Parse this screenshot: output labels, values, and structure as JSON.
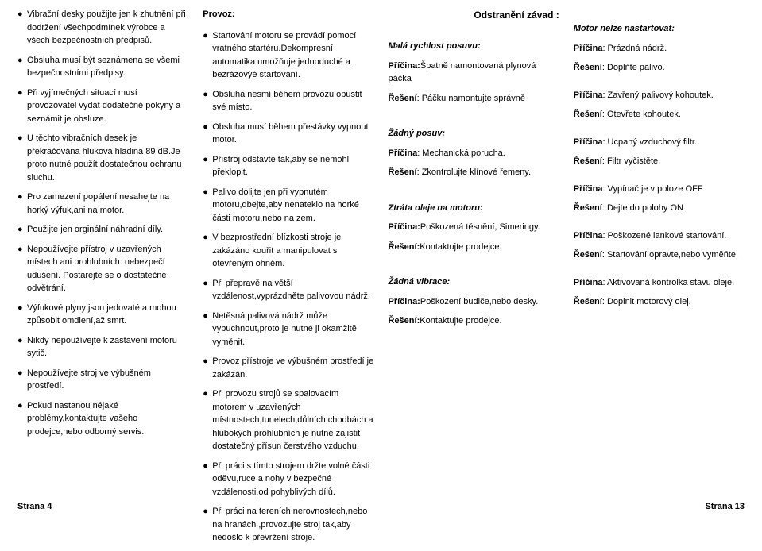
{
  "col1": {
    "items": [
      "Vibrační desky použijte jen k zhutnění při dodržení všechpodmínek výrobce a všech bezpečnostních předpisů.",
      "Obsluha musí být seznámena se všemi bezpečnostními předpisy.",
      "Při vyjímečných situací musí provozovatel vydat dodatečné pokyny a seznámit je obsluze.",
      "U těchto vibračních desek je překračována hluková hladina 89 dB.Je proto nutné použít dostatečnou ochranu sluchu.",
      "Pro zamezení popálení nesahejte na horký výfuk,ani na motor.",
      "Použijte jen orginální náhradní díly.",
      "Nepoužívejte přístroj v uzavřených místech ani prohlubních: nebezpečí udušení. Postarejte se o dostatečné odvětrání.",
      "Výfukové plyny jsou jedovaté a mohou způsobit omdlení,až smrt.",
      "Nikdy nepoužívejte k zastavení motoru sytič.",
      "Nepoužívejte stroj ve výbušném prostředí.",
      "Pokud nastanou nějaké problémy,kontaktujte vašeho prodejce,nebo odborný servis."
    ]
  },
  "col2": {
    "heading": "Provoz:",
    "items": [
      "Startování motoru se provádí pomocí vratného startéru.Dekompresní automatika umožňuje jednoduché a bezrázovýé startování.",
      "Obsluha nesmí během provozu opustit své místo.",
      "Obsluha musí během přestávky vypnout motor.",
      "Přístroj odstavte tak,aby se nemohl překlopit.",
      "Palivo dolijte jen při vypnutém motoru,dbejte,aby nenateklo na horké části motoru,nebo na zem.",
      "V bezprostřední blízkosti stroje je zakázáno kouřit a manipulovat s otevřeným ohněm.",
      "Při přepravě na větší vzdálenost,vyprázdněte palivovou nádrž.",
      "Netěsná palivová nádrž může vybuchnout,proto je nutné ji okamžitě vyměnit.",
      "Provoz přístroje ve výbušném prostředí je zakázán.",
      "Při provozu strojů se spalovacím motorem v uzavřených místnostech,tunelech,důlních chodbách a hlubokých prohlubních je nutné zajistit dostatečný přísun čerstvého vzduchu.",
      "Při práci s tímto strojem držte volné části oděvu,ruce a nohy v bezpečné vzdálenosti,od pohyblivých dílů.",
      "Při práci na tereních nerovnostech,nebo na hranách ,provozujte stroj tak,aby nedošlo k převržení stroje."
    ]
  },
  "col3": {
    "title": "Odstranění závad :",
    "groups": [
      {
        "header": "Malá rychlost posuvu:",
        "lines": [
          {
            "label": "Příčina:",
            "text": "Špatně namontovaná plynová páčka"
          },
          {
            "label": "Řešení",
            "text": ": Páčku namontujte správně"
          }
        ]
      },
      {
        "header": "Žádný posuv:",
        "lines": [
          {
            "label": "Příčina",
            "text": ": Mechanická porucha."
          },
          {
            "label": "Řešení",
            "text": ": Zkontrolujte klínové řemeny."
          }
        ]
      },
      {
        "header": "Ztráta oleje na motoru:",
        "lines": [
          {
            "label": "Příčina:",
            "text": "Poškozená těsnění, Simeringy."
          },
          {
            "label": "Řešení:",
            "text": "Kontaktujte prodejce."
          }
        ]
      },
      {
        "header": "Žádná vibrace:",
        "lines": [
          {
            "label": "Příčina:",
            "text": "Poškození budiče,nebo desky."
          },
          {
            "label": "Řešení:",
            "text": "Kontaktujte prodejce."
          }
        ]
      }
    ]
  },
  "col4": {
    "header": "Motor nelze nastartovat:",
    "lines": [
      {
        "label": "Příčina",
        "text": ": Prázdná nádrž."
      },
      {
        "label": "Řešení",
        "text": ": Doplňte palivo."
      },
      {
        "spacer": true
      },
      {
        "label": "Příčina",
        "text": ": Zavřený palivový kohoutek."
      },
      {
        "label": "Řešení",
        "text": ": Otevřete kohoutek."
      },
      {
        "spacer": true
      },
      {
        "label": "Příčina",
        "text": ": Ucpaný vzduchový filtr."
      },
      {
        "label": "Řešení",
        "text": ": Filtr vyčistěte."
      },
      {
        "spacer": true
      },
      {
        "label": "Příčina",
        "text": ": Vypínač je v poloze OFF"
      },
      {
        "label": "Řešení",
        "text": ": Dejte do polohy ON"
      },
      {
        "spacer": true
      },
      {
        "label": "Příčina",
        "text": ": Poškozené lankové startování."
      },
      {
        "label": "Řešení",
        "text": ": Startování opravte,nebo vyměňte."
      },
      {
        "spacer": true
      },
      {
        "label": "Příčina",
        "text": ": Aktivovaná kontrolka stavu oleje."
      },
      {
        "label": "Řešení",
        "text": ": Doplnit motorový olej."
      }
    ]
  },
  "footer": {
    "left": "Strana 4",
    "right": "Strana 13"
  }
}
